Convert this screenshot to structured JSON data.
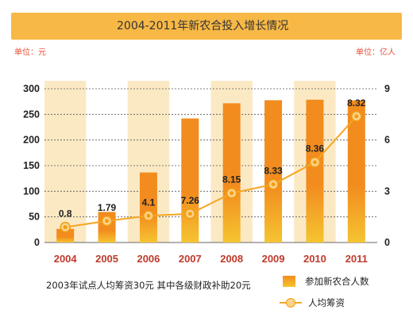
{
  "title": "2004-2011年新农合投入增长情况",
  "unit_left": "单位：元",
  "unit_right": "单位：亿人",
  "note": "2003年试点人均筹资30元  其中各级财政补助20元",
  "legend": {
    "bar_label": "参加新农合人数",
    "line_label": "人均筹资"
  },
  "colors": {
    "title_bar": "#f7b845",
    "bar_top": "#f28c1e",
    "bar_bottom": "#f5c431",
    "line": "#f5a623",
    "year_label": "#c0392b",
    "unit_text": "#e8503a"
  },
  "chart_data": {
    "type": "bar+line",
    "categories": [
      "2004",
      "2005",
      "2006",
      "2007",
      "2008",
      "2009",
      "2010",
      "2011"
    ],
    "series": [
      {
        "name": "参加新农合人数",
        "type": "bar",
        "axis": "right",
        "values": [
          0.8,
          1.79,
          4.1,
          7.26,
          8.15,
          8.33,
          8.36,
          8.32
        ]
      },
      {
        "name": "人均筹资",
        "type": "line",
        "axis": "left",
        "values": [
          30,
          42,
          52.1,
          56,
          96.3,
          113.4,
          156.6,
          246.2
        ],
        "data_labels": [
          "0.8",
          "1.79",
          "4.1",
          "7.26",
          "8.15",
          "8.33",
          "8.36",
          "8.32"
        ]
      }
    ],
    "left_axis": {
      "ticks": [
        0,
        50,
        100,
        150,
        200,
        250,
        300
      ],
      "ylim": [
        0,
        300
      ]
    },
    "right_axis": {
      "ticks": [
        0,
        3,
        6,
        9
      ],
      "ylim": [
        0,
        9
      ]
    },
    "grid": true
  }
}
